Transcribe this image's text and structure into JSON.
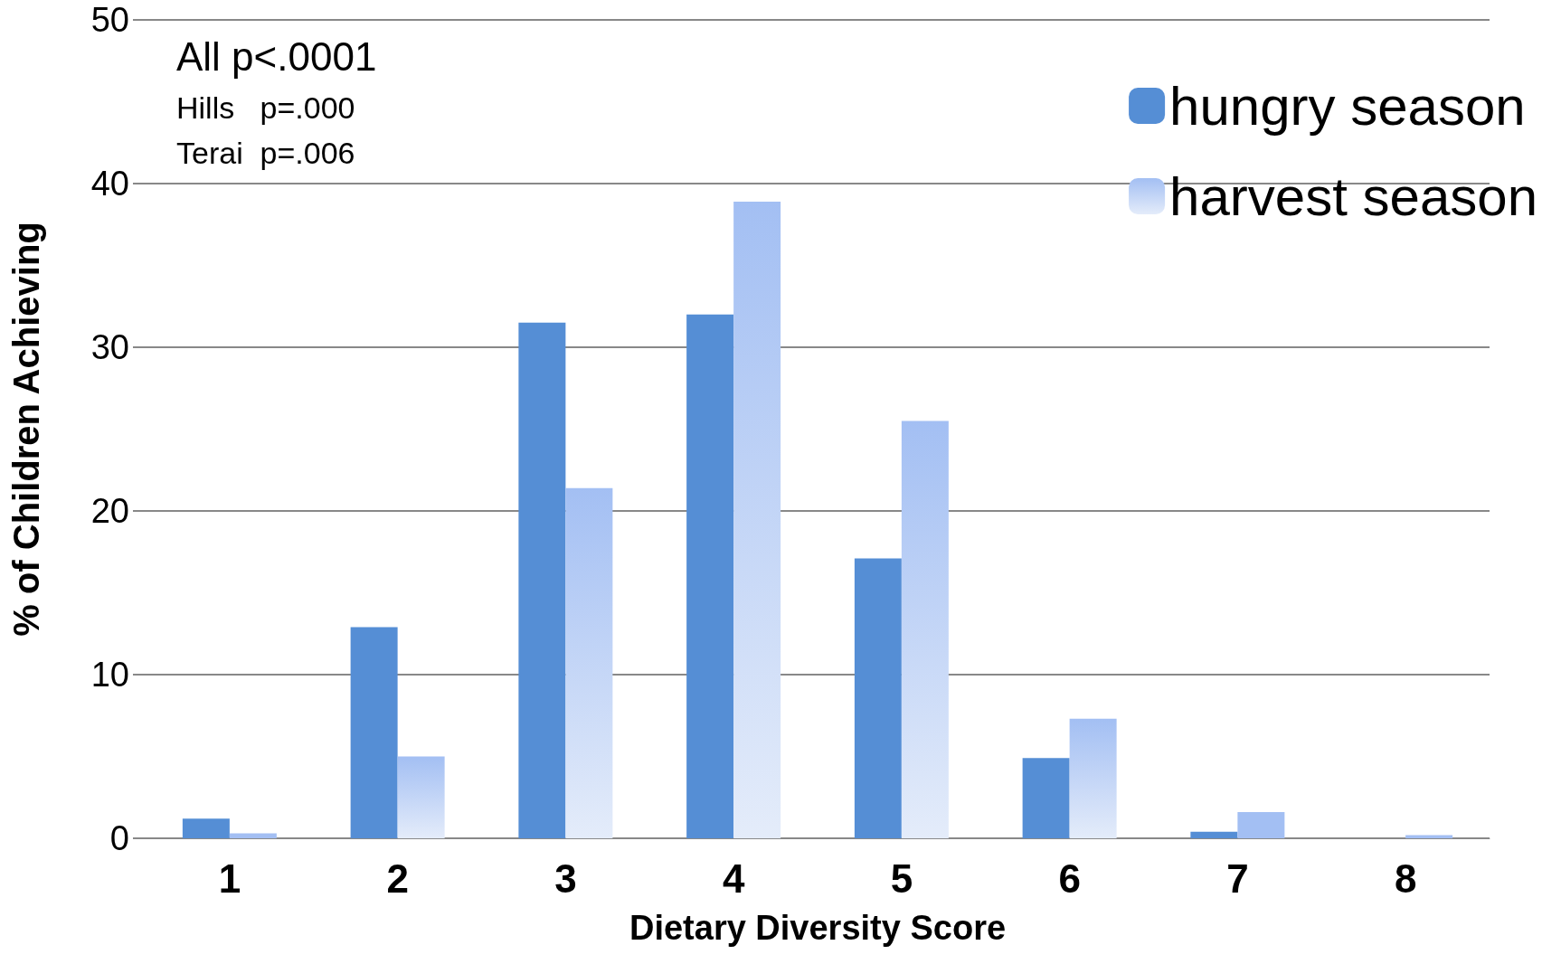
{
  "chart_data": {
    "type": "bar",
    "xlabel": "Dietary Diversity Score",
    "ylabel": "% of Children Achieving",
    "categories": [
      "1",
      "2",
      "3",
      "4",
      "5",
      "6",
      "7",
      "8"
    ],
    "series": [
      {
        "name": "hungry season",
        "color": "#558ed5",
        "values": [
          1.2,
          12.9,
          31.5,
          32.0,
          17.1,
          4.9,
          0.4,
          0
        ]
      },
      {
        "name": "harvest season",
        "color": "#a3bff3",
        "values": [
          0.3,
          5.0,
          21.4,
          38.9,
          25.5,
          7.3,
          1.6,
          0.2
        ]
      }
    ],
    "ylim": [
      0,
      50
    ],
    "yticks": [
      0,
      10,
      20,
      30,
      40,
      50
    ],
    "grid": "y",
    "legend": "top right",
    "annotations": [
      "All p<.0001",
      "Hills   p=.000",
      "Terai  p=.006"
    ]
  }
}
